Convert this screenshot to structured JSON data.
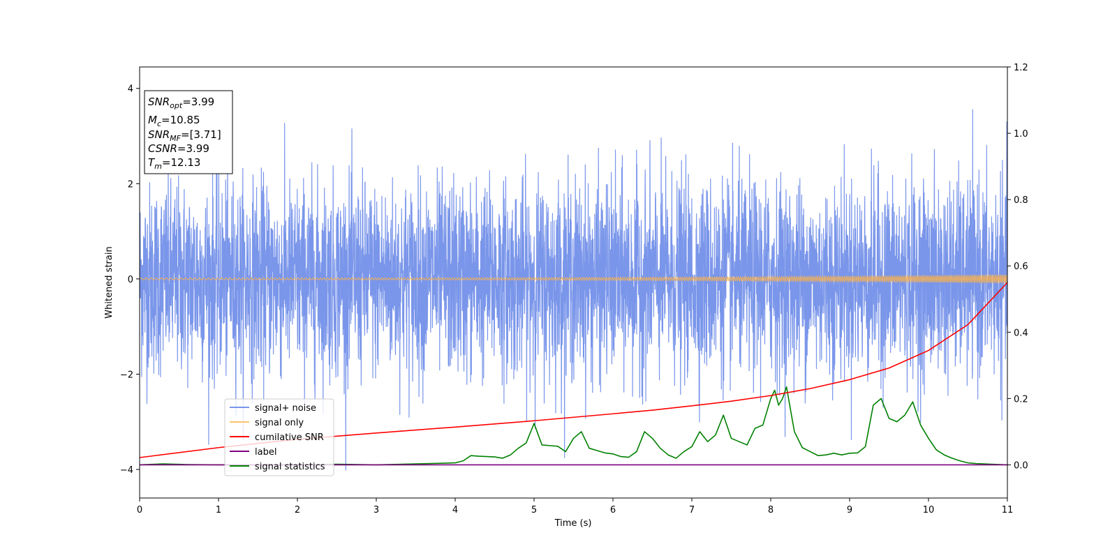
{
  "chart_data": {
    "type": "line",
    "title": "",
    "xlabel": "Time (s)",
    "ylabel": "Whitened strain",
    "xlim": [
      0,
      11
    ],
    "ylim": [
      -4.6,
      4.45
    ],
    "y2lim": [
      -0.1,
      1.2
    ],
    "x_ticks": [
      "0",
      "1",
      "2",
      "3",
      "4",
      "5",
      "6",
      "7",
      "8",
      "9",
      "10",
      "11"
    ],
    "y_ticks": [
      "−4",
      "−2",
      "0",
      "2",
      "4"
    ],
    "y2_ticks": [
      "0.0",
      "0.2",
      "0.4",
      "0.6",
      "0.8",
      "1.0",
      "1.2"
    ],
    "grid": false,
    "legend_position": "lower-left",
    "info_box": {
      "lines": [
        {
          "main": "SNR",
          "sub": "opt",
          "value": "=3.99"
        },
        {
          "main": "M",
          "sub": "c",
          "value": "=10.85"
        },
        {
          "main": "SNR",
          "sub": "MF",
          "value": "=[3.71]"
        },
        {
          "main": "CSNR",
          "sub": "",
          "value": "=3.99"
        },
        {
          "main": "T",
          "sub": "m",
          "value": "=12.13"
        }
      ]
    },
    "series": [
      {
        "name": "signal+ noise",
        "color": "#4169e1",
        "axis": "left",
        "description_values": {
          "mean": 0,
          "std": 1,
          "min": -4.15,
          "max": 4.05
        }
      },
      {
        "name": "signal only",
        "color": "#ffb347",
        "axis": "left",
        "amplitude_start": 0.02,
        "amplitude_end": 0.09
      },
      {
        "name": "cumilative SNR",
        "color": "#ff0000",
        "axis": "right",
        "x": [
          0,
          1,
          2,
          3,
          4,
          5,
          6,
          6.5,
          7,
          7.5,
          8,
          8.5,
          9,
          9.5,
          10,
          10.5,
          11
        ],
        "values": [
          0.022,
          0.052,
          0.077,
          0.096,
          0.114,
          0.133,
          0.154,
          0.165,
          0.178,
          0.192,
          0.209,
          0.23,
          0.257,
          0.292,
          0.345,
          0.423,
          0.55
        ]
      },
      {
        "name": "label",
        "color": "#800080",
        "axis": "right",
        "x": [
          0,
          11
        ],
        "values": [
          0.0,
          0.0
        ]
      },
      {
        "name": "signal statistics",
        "color": "#008000",
        "axis": "right",
        "x": [
          0,
          0.3,
          0.6,
          1.0,
          1.5,
          2.0,
          2.5,
          3.0,
          3.5,
          4.0,
          4.1,
          4.2,
          4.3,
          4.5,
          4.6,
          4.7,
          4.8,
          4.9,
          5.0,
          5.1,
          5.2,
          5.3,
          5.4,
          5.5,
          5.6,
          5.7,
          5.8,
          5.9,
          6.0,
          6.1,
          6.2,
          6.3,
          6.4,
          6.5,
          6.6,
          6.7,
          6.8,
          6.9,
          7.0,
          7.1,
          7.2,
          7.3,
          7.4,
          7.5,
          7.6,
          7.7,
          7.8,
          7.9,
          8.0,
          8.05,
          8.1,
          8.15,
          8.2,
          8.3,
          8.4,
          8.5,
          8.6,
          8.7,
          8.8,
          8.9,
          9.0,
          9.1,
          9.2,
          9.3,
          9.4,
          9.5,
          9.6,
          9.7,
          9.8,
          9.9,
          10.0,
          10.1,
          10.2,
          10.3,
          10.4,
          10.5,
          10.6,
          10.8,
          11.0
        ],
        "values": [
          0.0,
          0.003,
          0.001,
          0.0,
          0.0,
          0.0,
          0.002,
          0.0,
          0.003,
          0.006,
          0.012,
          0.028,
          0.026,
          0.024,
          0.02,
          0.03,
          0.05,
          0.066,
          0.125,
          0.06,
          0.058,
          0.056,
          0.04,
          0.08,
          0.1,
          0.05,
          0.043,
          0.036,
          0.033,
          0.025,
          0.023,
          0.04,
          0.1,
          0.08,
          0.05,
          0.03,
          0.02,
          0.04,
          0.055,
          0.1,
          0.07,
          0.09,
          0.15,
          0.08,
          0.07,
          0.06,
          0.11,
          0.12,
          0.2,
          0.225,
          0.18,
          0.2,
          0.235,
          0.1,
          0.052,
          0.04,
          0.028,
          0.03,
          0.035,
          0.03,
          0.035,
          0.036,
          0.055,
          0.18,
          0.2,
          0.14,
          0.13,
          0.15,
          0.19,
          0.12,
          0.08,
          0.045,
          0.03,
          0.02,
          0.012,
          0.006,
          0.004,
          0.002,
          0.0
        ]
      }
    ]
  }
}
